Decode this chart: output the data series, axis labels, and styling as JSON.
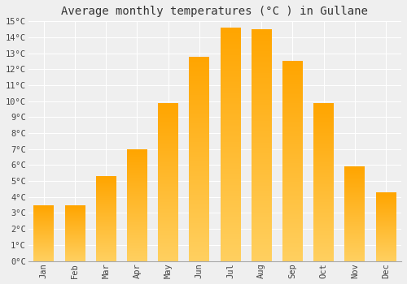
{
  "title": "Average monthly temperatures (°C ) in Gullane",
  "months": [
    "Jan",
    "Feb",
    "Mar",
    "Apr",
    "May",
    "Jun",
    "Jul",
    "Aug",
    "Sep",
    "Oct",
    "Nov",
    "Dec"
  ],
  "values": [
    3.5,
    3.5,
    5.3,
    7.0,
    9.9,
    12.8,
    14.6,
    14.5,
    12.5,
    9.9,
    5.9,
    4.3
  ],
  "bar_color_top": "#FFA500",
  "bar_color_bottom": "#FFD060",
  "ylim": [
    0,
    15
  ],
  "yticks": [
    0,
    1,
    2,
    3,
    4,
    5,
    6,
    7,
    8,
    9,
    10,
    11,
    12,
    13,
    14,
    15
  ],
  "ytick_labels": [
    "0°C",
    "1°C",
    "2°C",
    "3°C",
    "4°C",
    "5°C",
    "6°C",
    "7°C",
    "8°C",
    "9°C",
    "10°C",
    "11°C",
    "12°C",
    "13°C",
    "14°C",
    "15°C"
  ],
  "background_color": "#efefef",
  "grid_color": "#ffffff",
  "title_fontsize": 10,
  "tick_fontsize": 7.5,
  "bar_width": 0.65
}
